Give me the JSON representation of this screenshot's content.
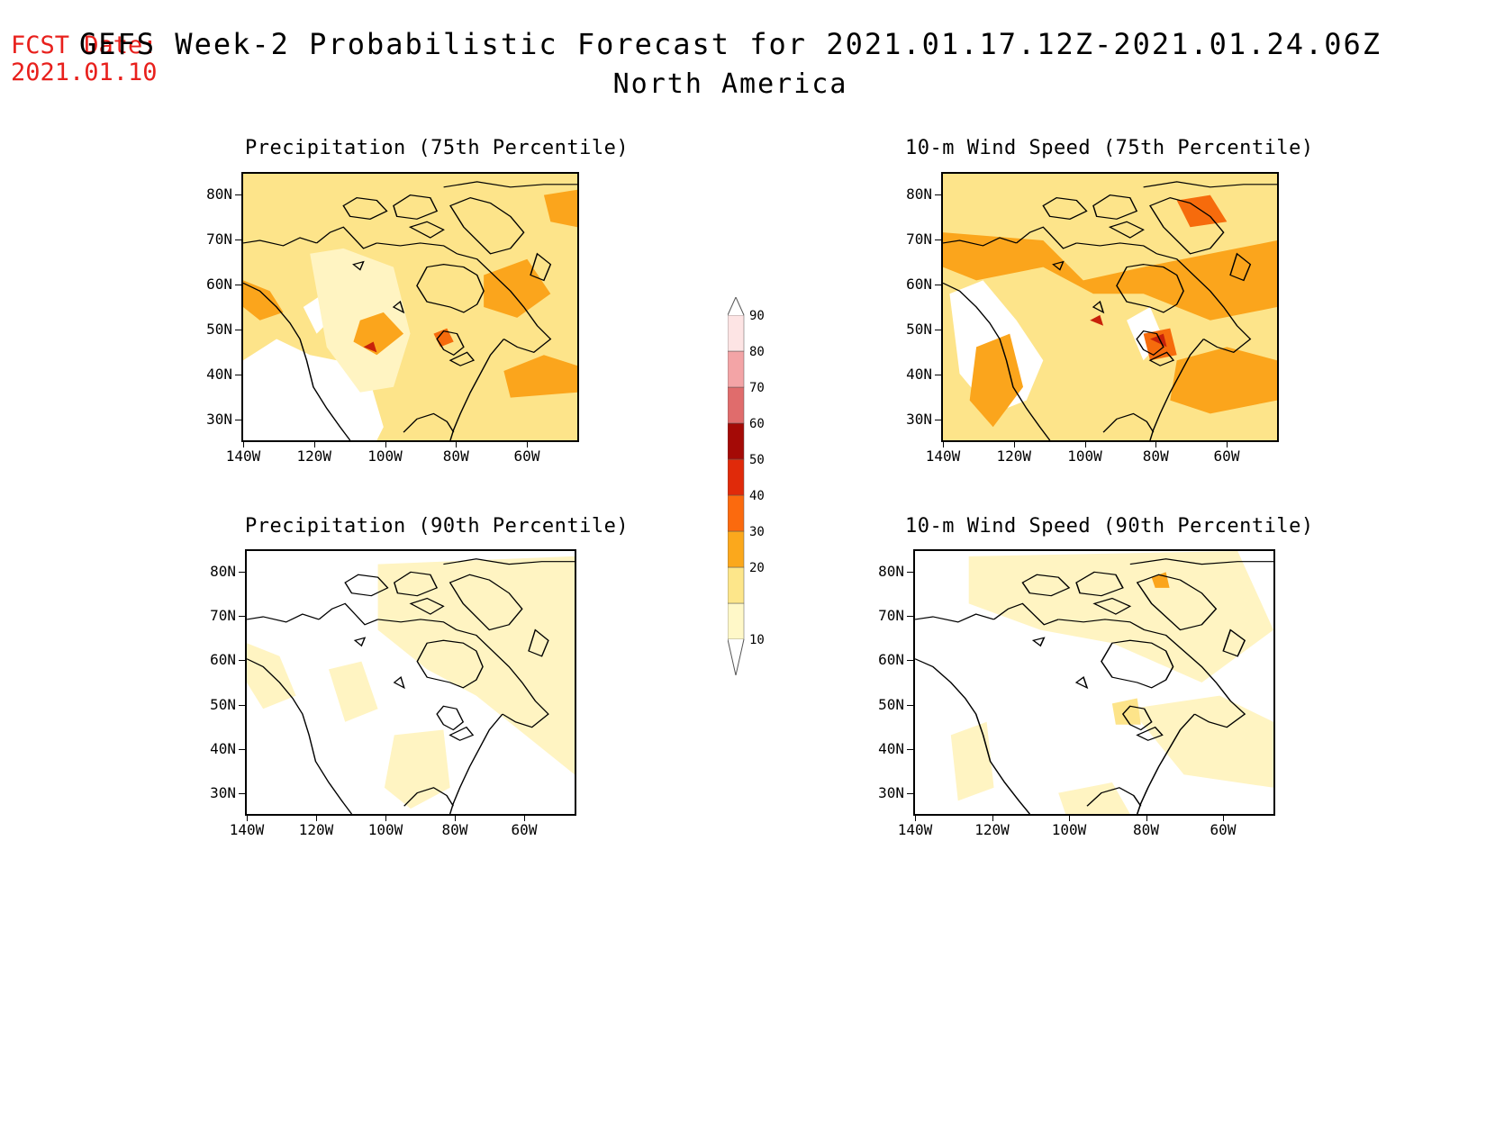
{
  "fcst_label": "FCST Date:",
  "fcst_date": "2021.01.10",
  "title": "GEFS Week-2 Probabilistic Forecast for 2021.01.17.12Z-2021.01.24.06Z",
  "subtitle": "North America",
  "panels": [
    {
      "title": "Precipitation (75th Percentile)"
    },
    {
      "title": "10-m Wind Speed (75th Percentile)"
    },
    {
      "title": "Precipitation (90th Percentile)"
    },
    {
      "title": "10-m Wind Speed (90th Percentile)"
    }
  ],
  "axes": {
    "lat_labels": [
      "80N",
      "70N",
      "60N",
      "50N",
      "40N",
      "30N"
    ],
    "lon_labels": [
      "140W",
      "120W",
      "100W",
      "80W",
      "60W"
    ]
  },
  "colorbar": {
    "levels": [
      "10",
      "20",
      "30",
      "40",
      "50",
      "60",
      "70",
      "80",
      "90"
    ],
    "colors": [
      "#fff8c8",
      "#fde68a",
      "#fba81c",
      "#fb6a0e",
      "#e02a0a",
      "#a40a06",
      "#e06c6c",
      "#f3a4a6",
      "#fde4e4"
    ]
  },
  "palette": {
    "land_low": "#fff4c2",
    "land_mid": "#fde48a",
    "land_high": "#fba51c",
    "land_higher": "#f66b0c",
    "land_peak": "#c8220a",
    "title_red": "#e8201c"
  }
}
